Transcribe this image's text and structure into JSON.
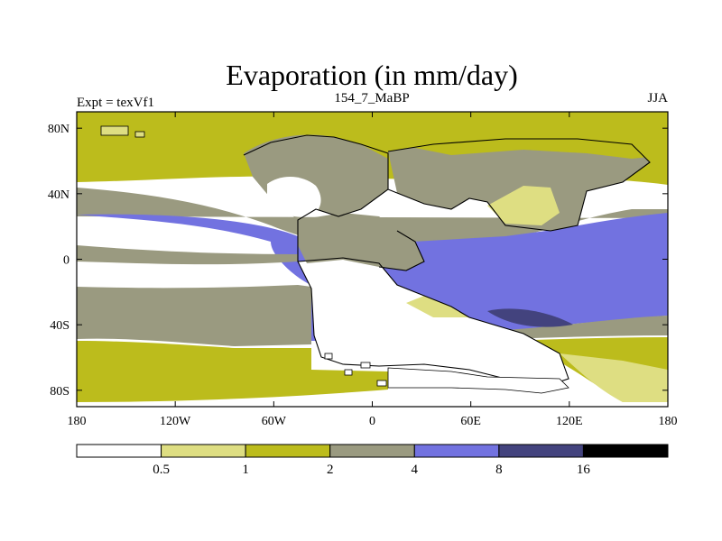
{
  "chart_data": {
    "type": "heatmap",
    "title": "Evaporation (in mm/day)",
    "left_label": "Expt = texVf1",
    "center_label": "154_7_MaBP",
    "right_label": "JJA",
    "x_ticks": [
      {
        "value": -180,
        "label": "180"
      },
      {
        "value": -120,
        "label": "120W"
      },
      {
        "value": -60,
        "label": "60W"
      },
      {
        "value": 0,
        "label": "0"
      },
      {
        "value": 60,
        "label": "60E"
      },
      {
        "value": 120,
        "label": "120E"
      },
      {
        "value": 180,
        "label": "180"
      }
    ],
    "y_ticks": [
      {
        "value": 80,
        "label": "80N"
      },
      {
        "value": 40,
        "label": "40N"
      },
      {
        "value": 0,
        "label": "0"
      },
      {
        "value": -40,
        "label": "40S"
      },
      {
        "value": -80,
        "label": "80S"
      }
    ],
    "xlim": [
      -180,
      180
    ],
    "ylim": [
      -90,
      90
    ],
    "colorbar": {
      "levels": [
        "0.5",
        "1",
        "2",
        "4",
        "8",
        "16"
      ],
      "colors": [
        "#ffffff",
        "#dede82",
        "#bcbc1c",
        "#9a9a80",
        "#7272e0",
        "#43437e",
        "#000000"
      ]
    },
    "zones": [
      {
        "name": "ocean-north-high",
        "level": 2,
        "color": "#bcbc1c",
        "lat": [
          60,
          90
        ]
      },
      {
        "name": "ocean-north-mid",
        "level": 3,
        "color": "#9a9a80",
        "lat": [
          25,
          45
        ]
      },
      {
        "name": "ocean-tropics",
        "level": 4,
        "color": "#7272e0",
        "lat": [
          -35,
          25
        ]
      },
      {
        "name": "ocean-south-mid",
        "level": 3,
        "color": "#9a9a80",
        "lat": [
          -50,
          -35
        ]
      },
      {
        "name": "ocean-south-high",
        "level": 2,
        "color": "#bcbc1c",
        "lat": [
          -85,
          -50
        ]
      },
      {
        "name": "indian-ocean-max",
        "level": 5,
        "color": "#43437e",
        "lat": [
          -40,
          -30
        ]
      }
    ]
  }
}
